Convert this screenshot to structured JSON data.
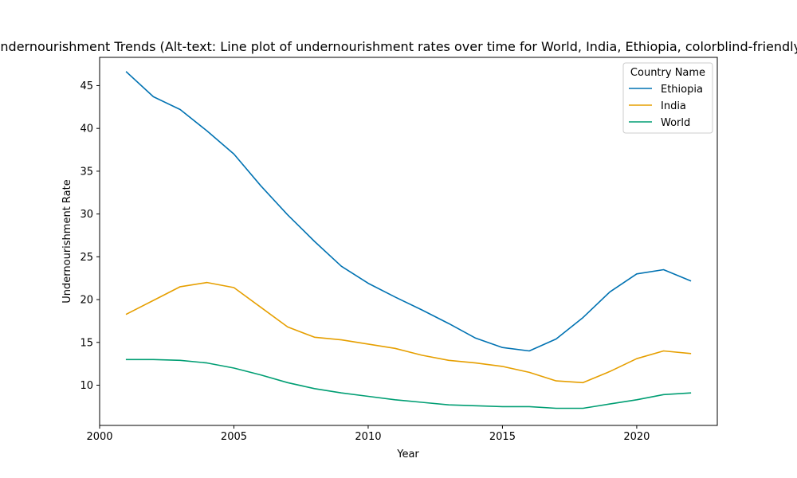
{
  "chart_data": {
    "type": "line",
    "title": "Undernourishment Trends (Alt-text: Line plot of undernourishment rates over time for World, India, Ethiopia, colorblind-friendly)",
    "xlabel": "Year",
    "ylabel": "Undernourishment Rate",
    "xlim": [
      2000,
      2023
    ],
    "ylim": [
      5.3,
      48.3
    ],
    "xticks": [
      2000,
      2005,
      2010,
      2015,
      2020
    ],
    "yticks": [
      10,
      15,
      20,
      25,
      30,
      35,
      40,
      45
    ],
    "grid": false,
    "legend": {
      "title": "Country Name",
      "placement": "top-right"
    },
    "x": [
      2001,
      2002,
      2003,
      2004,
      2005,
      2006,
      2007,
      2008,
      2009,
      2010,
      2011,
      2012,
      2013,
      2014,
      2015,
      2016,
      2017,
      2018,
      2019,
      2020,
      2021,
      2022
    ],
    "series": [
      {
        "name": "Ethiopia",
        "color": "#0072b2",
        "values": [
          46.6,
          43.7,
          42.2,
          39.7,
          37.0,
          33.3,
          29.9,
          26.8,
          23.9,
          21.9,
          20.3,
          18.8,
          17.2,
          15.5,
          14.4,
          14.0,
          15.4,
          17.9,
          20.9,
          23.0,
          23.5,
          22.2
        ]
      },
      {
        "name": "India",
        "color": "#e69f00",
        "values": [
          18.3,
          19.9,
          21.5,
          22.0,
          21.4,
          19.1,
          16.8,
          15.6,
          15.3,
          14.8,
          14.3,
          13.5,
          12.9,
          12.6,
          12.2,
          11.5,
          10.5,
          10.3,
          11.6,
          13.1,
          14.0,
          13.7
        ]
      },
      {
        "name": "World",
        "color": "#009e73",
        "values": [
          13.0,
          13.0,
          12.9,
          12.6,
          12.0,
          11.2,
          10.3,
          9.6,
          9.1,
          8.7,
          8.3,
          8.0,
          7.7,
          7.6,
          7.5,
          7.5,
          7.3,
          7.3,
          7.8,
          8.3,
          8.9,
          9.1
        ]
      }
    ]
  }
}
